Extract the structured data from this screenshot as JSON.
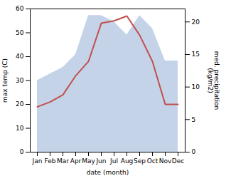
{
  "chart_data": {
    "type": "line",
    "categories": [
      "Jan",
      "Feb",
      "Mar",
      "Apr",
      "May",
      "Jun",
      "Jul",
      "Aug",
      "Sep",
      "Oct",
      "Nov",
      "Dec"
    ],
    "xlabel": "date (month)",
    "ylabel": "max temp (C)",
    "y2label": "med. precipitation\n(kg/m2)",
    "ylim": [
      0,
      60
    ],
    "yticks": [
      0,
      10,
      20,
      30,
      40,
      50,
      60
    ],
    "y2lim": [
      0,
      22
    ],
    "y2ticks": [
      0,
      5,
      10,
      15,
      20
    ],
    "series": [
      {
        "type": "area",
        "axis": "y2",
        "color": "#c5d3e8",
        "values": [
          11,
          12,
          13,
          15,
          21,
          21,
          20,
          18,
          21,
          19,
          14,
          14
        ]
      },
      {
        "type": "line",
        "color": "#c0504d",
        "values": [
          19,
          21,
          24,
          32,
          38,
          54,
          55,
          57,
          49,
          38,
          20,
          20
        ]
      }
    ]
  }
}
